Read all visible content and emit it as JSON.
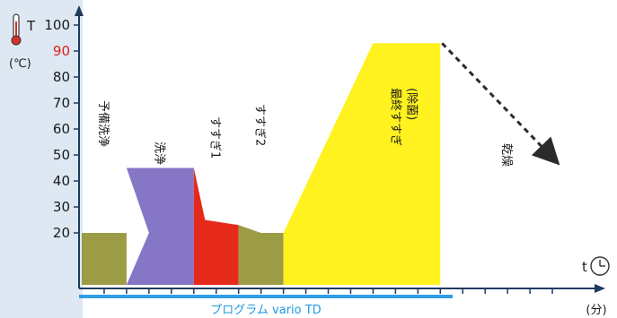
{
  "units_label": "(℃)",
  "x_unit_label": "(分)",
  "program_label": "プログラム vario TD",
  "colors": {
    "background": "#ffffff",
    "panel_left": "#dde8f3",
    "axis": "#1f3a5f",
    "program_bar": "#2f9ee0",
    "program_text": "#1f9be0",
    "highlight_tick": "#e0201c",
    "prewash": "#9c9c47",
    "wash": "#8676c6",
    "rinse1": "#e52a1c",
    "rinse2": "#9c9c47",
    "final_rinse": "#fff21f",
    "dry_arrow": "#2b2b2b"
  },
  "chart_data": {
    "type": "area",
    "title": "",
    "ylabel": "T",
    "xlabel": "t",
    "ylim": [
      0,
      100
    ],
    "yticks": [
      "20",
      "30",
      "40",
      "50",
      "60",
      "70",
      "80",
      "90",
      "100"
    ],
    "highlight_ytick": "90",
    "phases": [
      {
        "name": "予備洗浄",
        "color": "#9c9c47",
        "x": [
          0,
          2,
          2,
          0
        ],
        "y": [
          0,
          0,
          20,
          20
        ]
      },
      {
        "name": "洗浄",
        "color": "#8676c6",
        "x": [
          2,
          5,
          5,
          2,
          3
        ],
        "y": [
          0,
          0,
          45,
          45,
          20
        ]
      },
      {
        "name": "すすぎ1",
        "color": "#e52a1c",
        "x": [
          5,
          7,
          7,
          5.5,
          5
        ],
        "y": [
          0,
          0,
          23,
          25,
          45
        ]
      },
      {
        "name": "すすぎ2",
        "color": "#9c9c47",
        "x": [
          7,
          9,
          9,
          8,
          7
        ],
        "y": [
          0,
          0,
          20,
          20,
          23
        ]
      },
      {
        "name": "最終すすぎ\n(除菌)",
        "color": "#fff21f",
        "x": [
          9,
          16,
          16,
          13,
          9
        ],
        "y": [
          0,
          0,
          93,
          93,
          20
        ]
      }
    ],
    "drying": {
      "name": "乾燥",
      "x": [
        16,
        21
      ],
      "y": [
        93,
        49
      ]
    },
    "xlim": [
      0,
      22
    ]
  }
}
